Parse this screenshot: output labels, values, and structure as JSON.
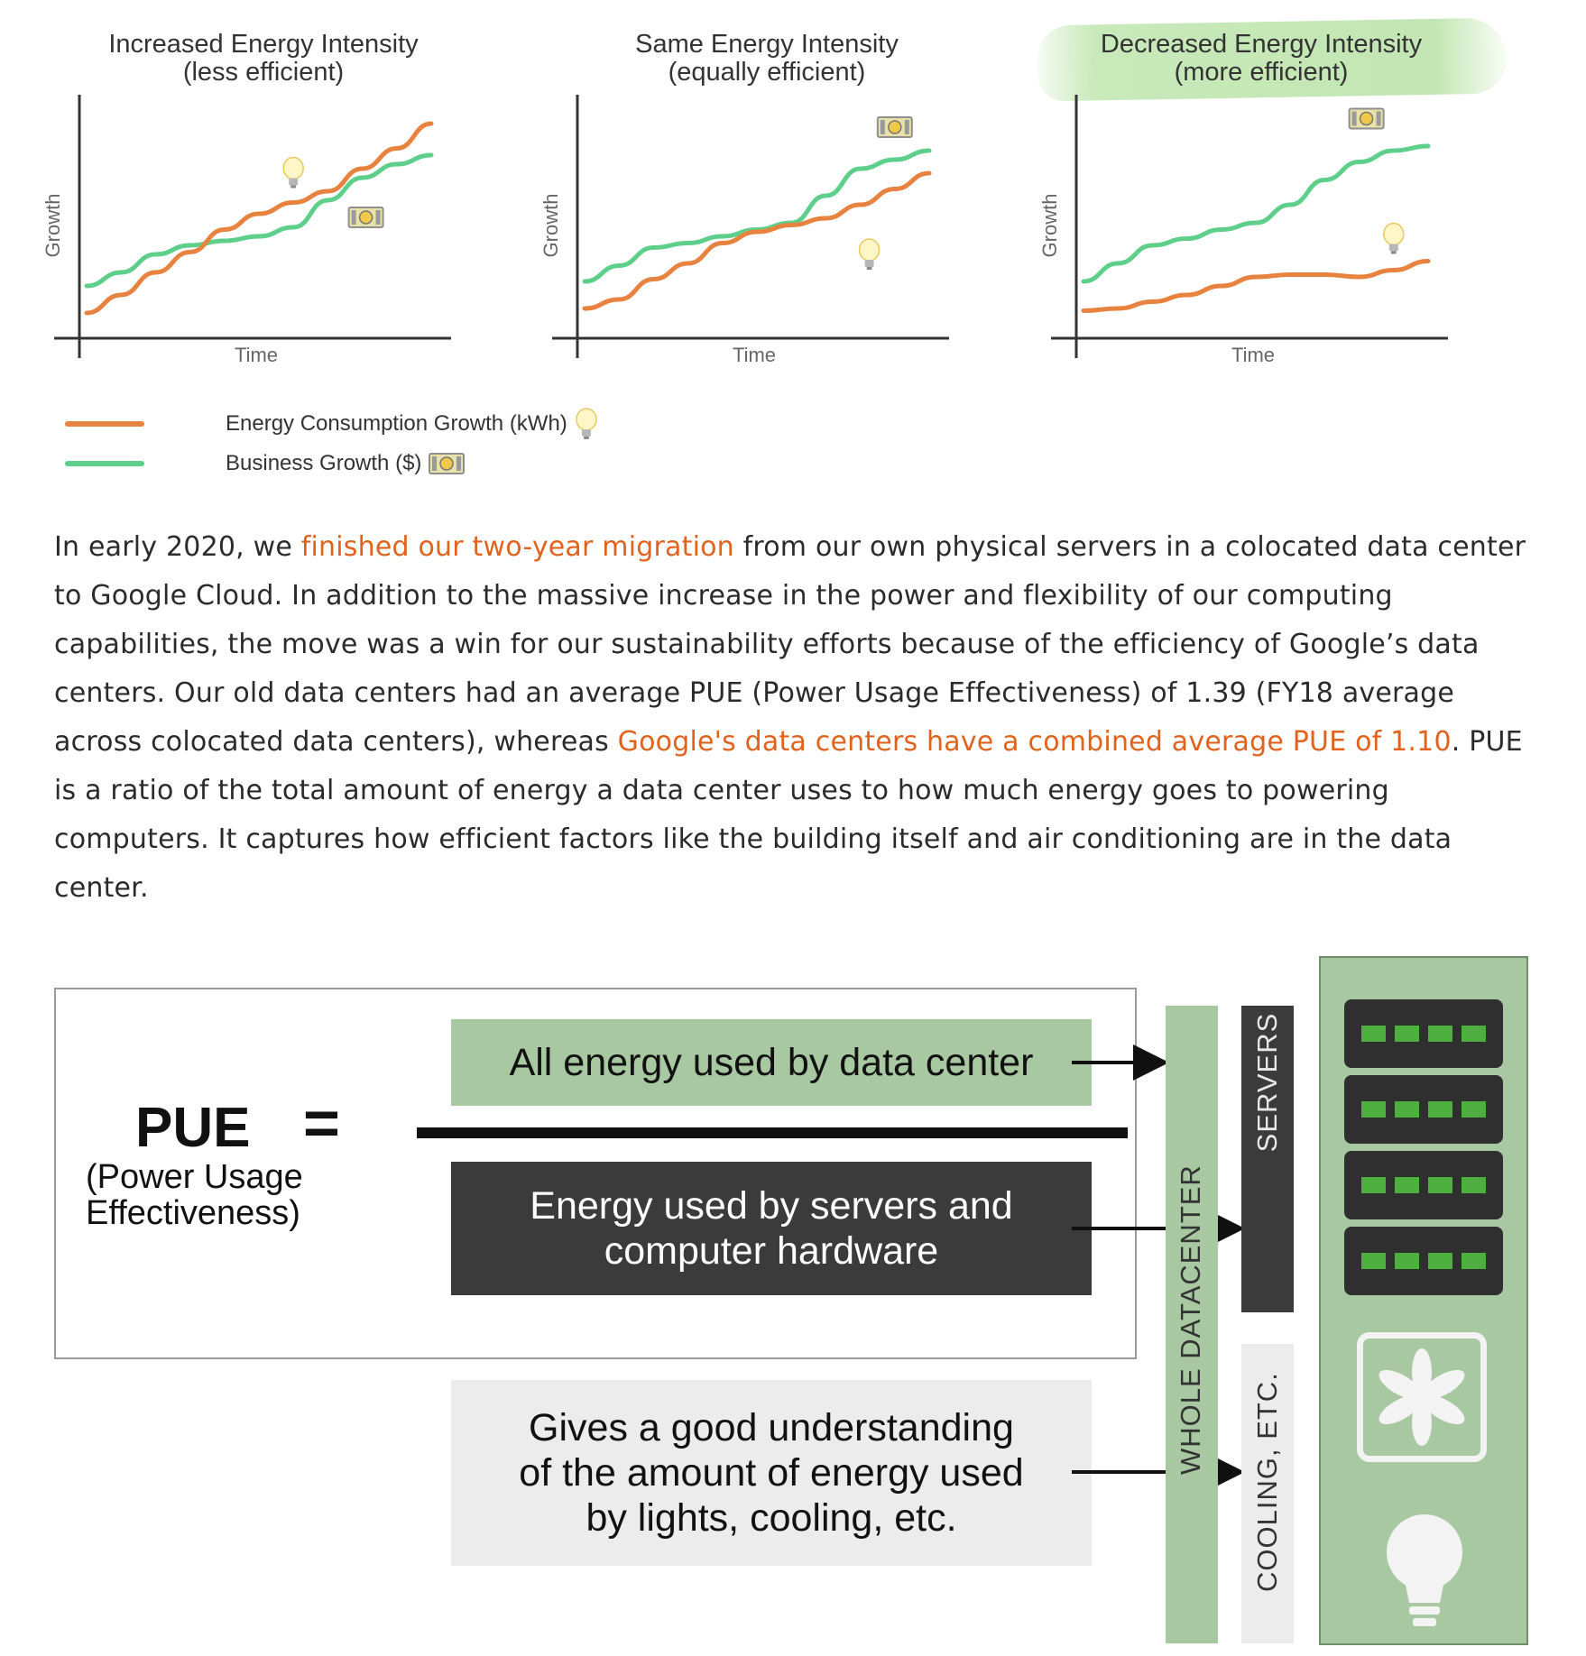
{
  "charts": {
    "legend": {
      "energy": "Energy Consumption Growth (kWh)",
      "business": "Business Growth ($)"
    },
    "colors": {
      "energy": "#e8823f",
      "business": "#5dcf8a"
    },
    "icons": {
      "energy": "lightbulb-icon",
      "business": "money-icon"
    }
  },
  "chart_data": [
    {
      "type": "line",
      "title": "Increased Energy Intensity",
      "subtitle": "(less efficient)",
      "xlabel": "Time",
      "ylabel": "Growth",
      "highlighted": false,
      "x": [
        0,
        1,
        2,
        3,
        4,
        5,
        6,
        7,
        8,
        9,
        10
      ],
      "series": [
        {
          "name": "Energy Consumption Growth (kWh)",
          "values": [
            8,
            16,
            26,
            35,
            45,
            52,
            57,
            62,
            72,
            81,
            92
          ]
        },
        {
          "name": "Business Growth ($)",
          "values": [
            20,
            26,
            34,
            38,
            40,
            42,
            46,
            58,
            68,
            74,
            78
          ]
        }
      ]
    },
    {
      "type": "line",
      "title": "Same Energy Intensity",
      "subtitle": "(equally efficient)",
      "xlabel": "Time",
      "ylabel": "Growth",
      "highlighted": false,
      "x": [
        0,
        1,
        2,
        3,
        4,
        5,
        6,
        7,
        8,
        9,
        10
      ],
      "series": [
        {
          "name": "Energy Consumption Growth (kWh)",
          "values": [
            10,
            14,
            23,
            30,
            39,
            44,
            47,
            50,
            56,
            63,
            70
          ]
        },
        {
          "name": "Business Growth ($)",
          "values": [
            22,
            29,
            37,
            39,
            42,
            45,
            48,
            60,
            72,
            76,
            80
          ]
        }
      ]
    },
    {
      "type": "line",
      "title": "Decreased Energy Intensity",
      "subtitle": "(more efficient)",
      "xlabel": "Time",
      "ylabel": "Growth",
      "highlighted": true,
      "x": [
        0,
        1,
        2,
        3,
        4,
        5,
        6,
        7,
        8,
        9,
        10
      ],
      "series": [
        {
          "name": "Energy Consumption Growth (kWh)",
          "values": [
            9,
            10,
            13,
            16,
            20,
            24,
            25,
            25,
            24,
            27,
            31
          ]
        },
        {
          "name": "Business Growth ($)",
          "values": [
            22,
            30,
            38,
            41,
            45,
            48,
            56,
            67,
            75,
            80,
            82
          ]
        }
      ]
    }
  ],
  "article": {
    "p1_a": "In early 2020, we ",
    "link1": "finished our two-year migration",
    "p1_b": " from our own physical servers in a colocated data center to Google Cloud. In addition to the massive increase in the power and flexibility of our computing capabilities, the move was a win for our sustainability efforts because of the efficiency of Google’s data centers. Our old data centers had an average PUE (Power Usage Effectiveness) of 1.39 (FY18 average across colocated data centers), whereas ",
    "link2": "Google's data centers have a combined average PUE of 1.10",
    "p1_c": ". PUE is a ratio of the total amount of energy a data center uses to how much energy goes to powering computers. It captures how efficient factors like the building itself and air conditioning are in the data center.",
    "link_color": "#e0631d"
  },
  "pue_diagram": {
    "pue": "PUE",
    "equals": "=",
    "pue_expanded_1": "(Power Usage",
    "pue_expanded_2": "Effectiveness)",
    "numerator": "All energy used by data center",
    "denominator_1": "Energy used by servers and",
    "denominator_2": "computer hardware",
    "note_1": "Gives a good understanding",
    "note_2": "of the amount of energy used",
    "note_3": "by lights, cooling, etc.",
    "col_whole": "WHOLE DATACENTER",
    "col_servers": "SERVERS",
    "col_cooling": "COOLING, ETC.",
    "rack_icons": [
      "server-icon",
      "server-icon",
      "server-icon",
      "server-icon",
      "fan-icon",
      "lightbulb-icon"
    ],
    "colors": {
      "green": "#a8c8a2",
      "dark": "#3b3b3b",
      "light": "#ececec",
      "led": "#4caf3e"
    }
  }
}
